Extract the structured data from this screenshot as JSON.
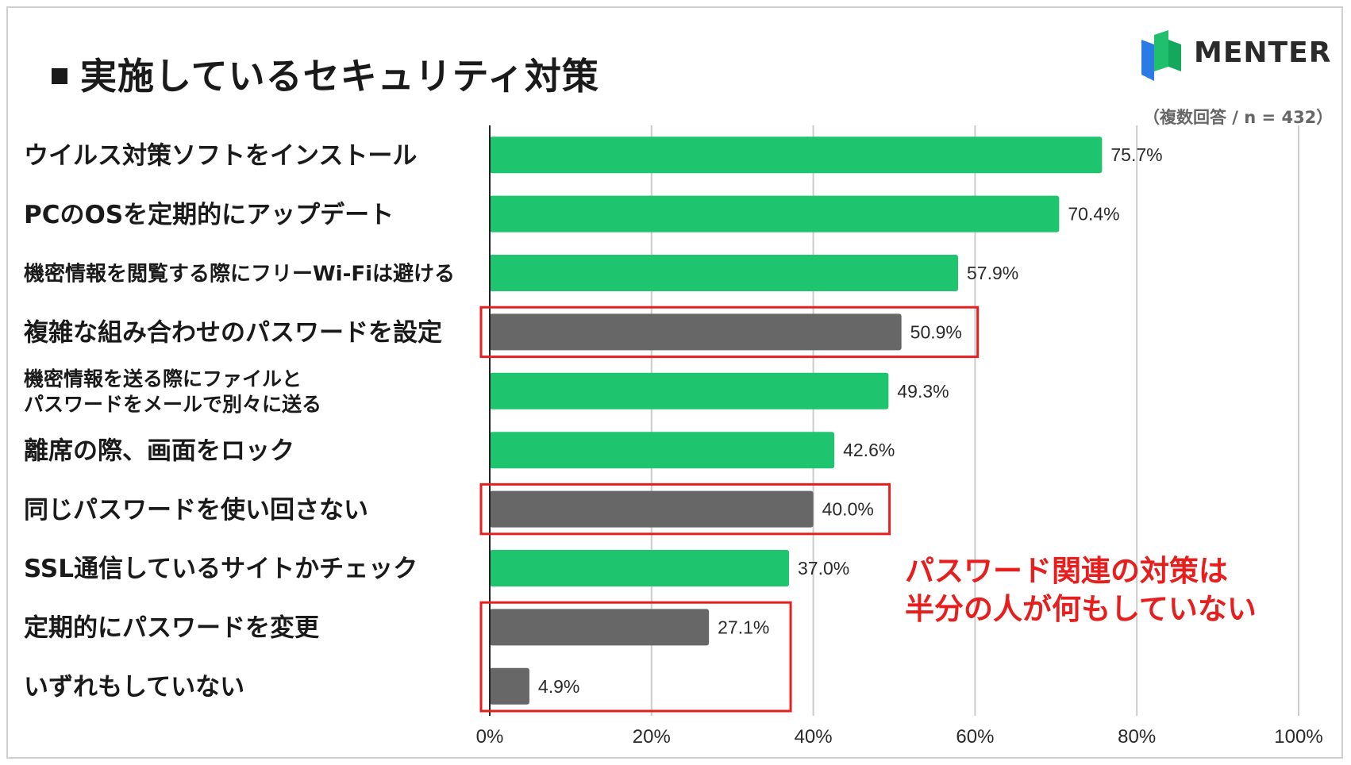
{
  "header": {
    "title": "実施しているセキュリティ対策",
    "note": "（複数回答 / n = 432）"
  },
  "logo": {
    "brand": "MENTER",
    "icon": "menter-logo-icon",
    "colors": [
      "#1fbf6d",
      "#2a7be4",
      "#14a85c"
    ]
  },
  "callout": {
    "line1": "パスワード関連の対策は",
    "line2": "半分の人が何もしていない",
    "color": "#e61e1e"
  },
  "chart_data": {
    "type": "bar",
    "orientation": "horizontal",
    "title": "実施しているセキュリティ対策",
    "xlabel": "",
    "ylabel": "",
    "xlim": [
      0,
      100
    ],
    "grid": true,
    "ticks": [
      "0%",
      "20%",
      "40%",
      "60%",
      "80%",
      "100%"
    ],
    "tick_values": [
      0,
      20,
      40,
      60,
      80,
      100
    ],
    "categories": [
      [
        "ウイルス対策ソフトをインストール"
      ],
      [
        "PCのOSを定期的にアップデート"
      ],
      [
        "機密情報を閲覧する際にフリーWi-Fiは避ける"
      ],
      [
        "複雑な組み合わせのパスワードを設定"
      ],
      [
        "機密情報を送る際にファイルと",
        "パスワードをメールで別々に送る"
      ],
      [
        "離席の際、画面をロック"
      ],
      [
        "同じパスワードを使い回さない"
      ],
      [
        "SSL通信しているサイトかチェック"
      ],
      [
        "定期的にパスワードを変更"
      ],
      [
        "いずれもしていない"
      ]
    ],
    "values": [
      75.7,
      70.4,
      57.9,
      50.9,
      49.3,
      42.6,
      40.0,
      37.0,
      27.1,
      4.9
    ],
    "value_labels": [
      "75.7%",
      "70.4%",
      "57.9%",
      "50.9%",
      "49.3%",
      "42.6%",
      "40.0%",
      "37.0%",
      "27.1%",
      "4.9%"
    ],
    "highlighted": [
      false,
      false,
      false,
      true,
      false,
      false,
      true,
      false,
      true,
      true
    ],
    "highlight_groups": [
      [
        3
      ],
      [
        6
      ],
      [
        8,
        9
      ]
    ],
    "colors": {
      "normal": "#1fc46f",
      "highlighted": "#676767",
      "highlight_box": "#e61e1e",
      "grid": "#cccccc",
      "axis": "#222222"
    }
  }
}
